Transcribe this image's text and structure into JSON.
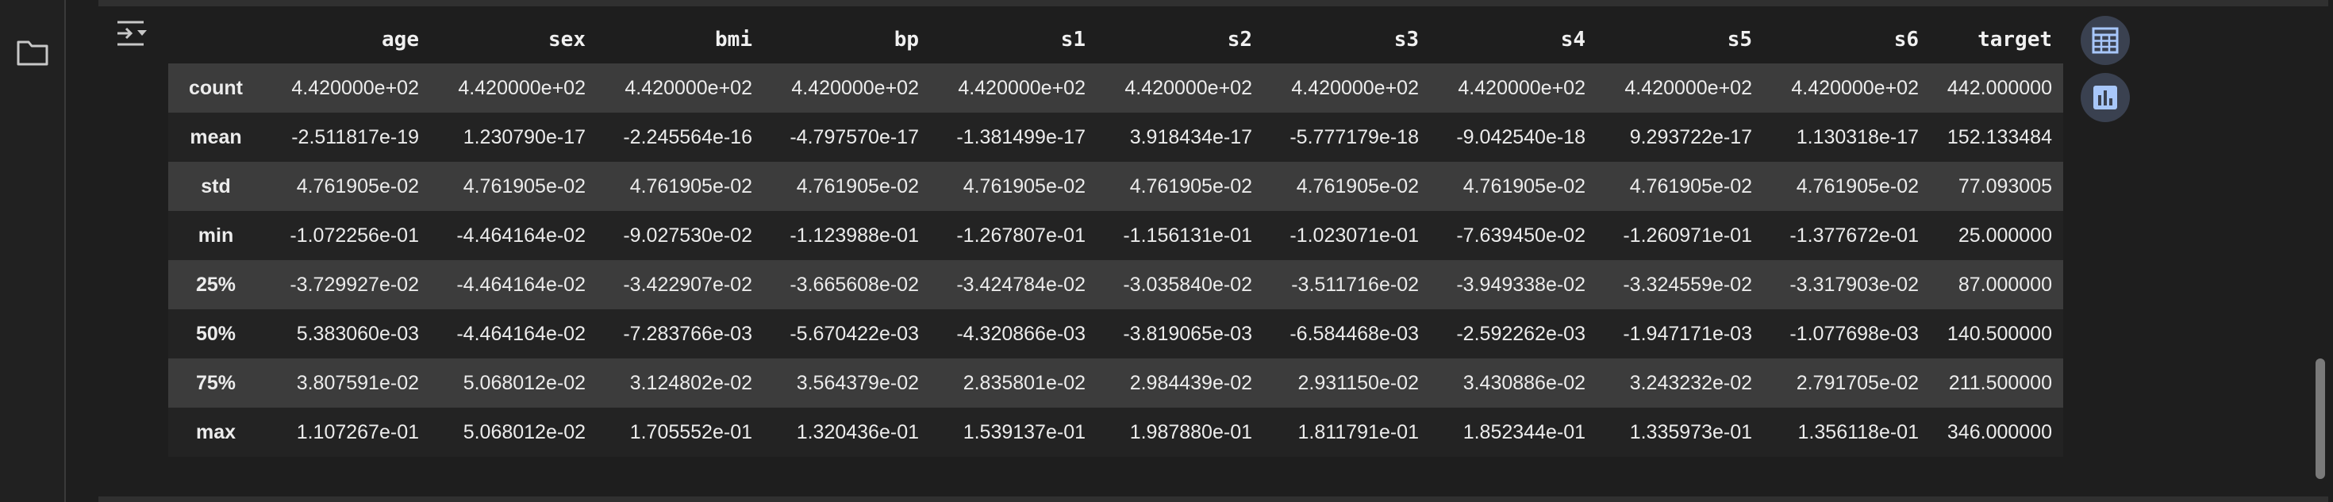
{
  "sidebar": {
    "icon": "folder-icon"
  },
  "output_toggle": {
    "icon": "output-collapse-icon"
  },
  "table": {
    "columns": [
      "",
      "age",
      "sex",
      "bmi",
      "bp",
      "s1",
      "s2",
      "s3",
      "s4",
      "s5",
      "s6",
      "target"
    ],
    "rows": [
      {
        "label": "count",
        "values": [
          "4.420000e+02",
          "4.420000e+02",
          "4.420000e+02",
          "4.420000e+02",
          "4.420000e+02",
          "4.420000e+02",
          "4.420000e+02",
          "4.420000e+02",
          "4.420000e+02",
          "4.420000e+02",
          "442.000000"
        ]
      },
      {
        "label": "mean",
        "values": [
          "-2.511817e-19",
          "1.230790e-17",
          "-2.245564e-16",
          "-4.797570e-17",
          "-1.381499e-17",
          "3.918434e-17",
          "-5.777179e-18",
          "-9.042540e-18",
          "9.293722e-17",
          "1.130318e-17",
          "152.133484"
        ]
      },
      {
        "label": "std",
        "values": [
          "4.761905e-02",
          "4.761905e-02",
          "4.761905e-02",
          "4.761905e-02",
          "4.761905e-02",
          "4.761905e-02",
          "4.761905e-02",
          "4.761905e-02",
          "4.761905e-02",
          "4.761905e-02",
          "77.093005"
        ]
      },
      {
        "label": "min",
        "values": [
          "-1.072256e-01",
          "-4.464164e-02",
          "-9.027530e-02",
          "-1.123988e-01",
          "-1.267807e-01",
          "-1.156131e-01",
          "-1.023071e-01",
          "-7.639450e-02",
          "-1.260971e-01",
          "-1.377672e-01",
          "25.000000"
        ]
      },
      {
        "label": "25%",
        "values": [
          "-3.729927e-02",
          "-4.464164e-02",
          "-3.422907e-02",
          "-3.665608e-02",
          "-3.424784e-02",
          "-3.035840e-02",
          "-3.511716e-02",
          "-3.949338e-02",
          "-3.324559e-02",
          "-3.317903e-02",
          "87.000000"
        ]
      },
      {
        "label": "50%",
        "values": [
          "5.383060e-03",
          "-4.464164e-02",
          "-7.283766e-03",
          "-5.670422e-03",
          "-4.320866e-03",
          "-3.819065e-03",
          "-6.584468e-03",
          "-2.592262e-03",
          "-1.947171e-03",
          "-1.077698e-03",
          "140.500000"
        ]
      },
      {
        "label": "75%",
        "values": [
          "3.807591e-02",
          "5.068012e-02",
          "3.124802e-02",
          "3.564379e-02",
          "2.835801e-02",
          "2.984439e-02",
          "2.931150e-02",
          "3.430886e-02",
          "3.243232e-02",
          "2.791705e-02",
          "211.500000"
        ]
      },
      {
        "label": "max",
        "values": [
          "1.107267e-01",
          "5.068012e-02",
          "1.705552e-01",
          "1.320436e-01",
          "1.539137e-01",
          "1.987880e-01",
          "1.811791e-01",
          "1.852344e-01",
          "1.335973e-01",
          "1.356118e-01",
          "346.000000"
        ]
      }
    ]
  },
  "toolbar": {
    "buttons": [
      {
        "name": "table-view-button",
        "icon": "table-icon"
      },
      {
        "name": "chart-suggest-button",
        "icon": "bar-chart-icon"
      }
    ]
  },
  "colors": {
    "background": "#1e1e1e",
    "row_odd": "#3c3c3c",
    "row_even": "#232323",
    "text": "#ececec",
    "button_bg": "#3a4150",
    "icon_blue": "#a8c7fa"
  }
}
